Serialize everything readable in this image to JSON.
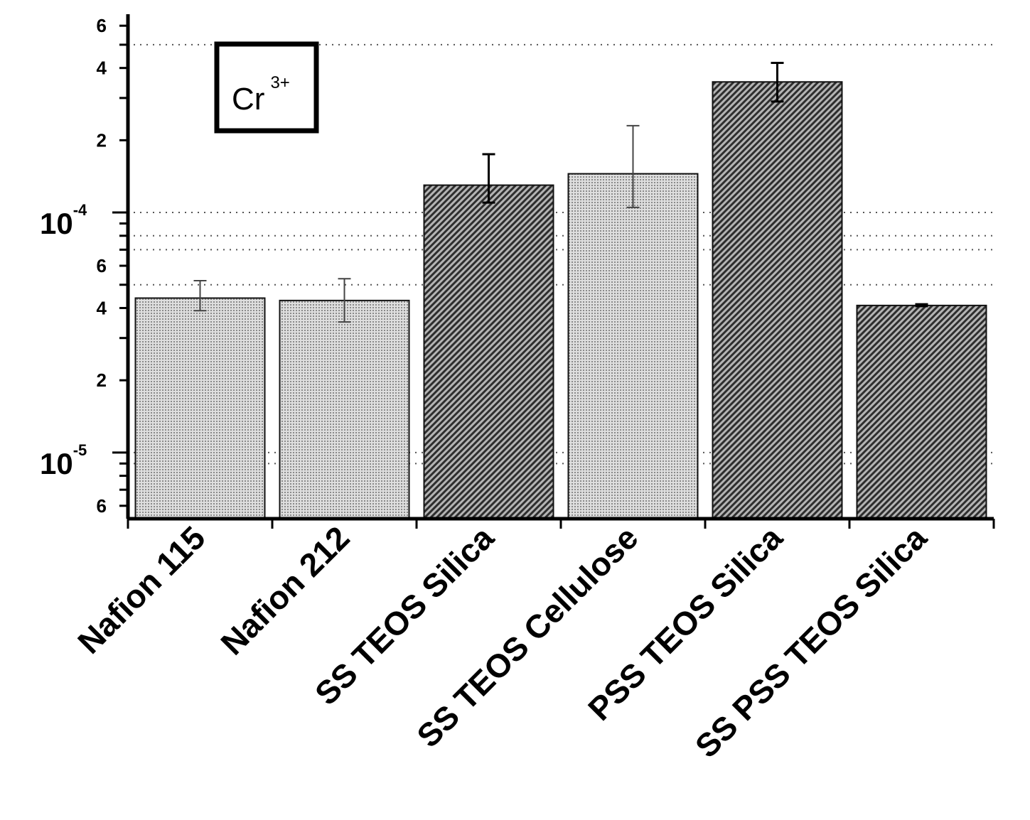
{
  "chart_data": {
    "type": "bar",
    "title": "",
    "xlabel": "",
    "ylabel": "",
    "yscale": "log",
    "ylim": [
      5.3e-06,
      0.00067
    ],
    "categories": [
      "Nafion 115",
      "Nafion 212",
      "SS TEOS Silica",
      "SS TEOS Cellulose",
      "PSS TEOS Silica",
      "SS PSS TEOS Silica"
    ],
    "values": [
      4.4e-05,
      4.3e-05,
      0.00013,
      0.000145,
      0.00035,
      4.1e-05
    ],
    "error_low": [
      3.9e-05,
      3.5e-05,
      0.00011,
      0.000105,
      0.00029,
      4.07e-05
    ],
    "error_high": [
      5.2e-05,
      5.3e-05,
      0.000175,
      0.00023,
      0.00042,
      4.15e-05
    ],
    "fill_style": [
      "light",
      "light",
      "dark",
      "light",
      "dark",
      "dark"
    ],
    "grid": "dotted horizontal",
    "annotation": {
      "base": "Cr",
      "superscript": "3+"
    },
    "y_major_ticks": [
      {
        "value": 0.0001,
        "base": "10",
        "exp": "-4"
      },
      {
        "value": 1e-05,
        "base": "10",
        "exp": "-5"
      }
    ],
    "y_minor_labels": [
      {
        "value": 0.0006,
        "label": "6"
      },
      {
        "value": 0.0004,
        "label": "4"
      },
      {
        "value": 0.0002,
        "label": "2"
      },
      {
        "value": 6e-05,
        "label": "6"
      },
      {
        "value": 4e-05,
        "label": "4"
      },
      {
        "value": 2e-05,
        "label": "2"
      },
      {
        "value": 6e-06,
        "label": "6"
      }
    ],
    "colors": {
      "light_bar": "#d2d2d2",
      "dark_bar": "#7e7e7e",
      "axis": "#000000"
    }
  }
}
